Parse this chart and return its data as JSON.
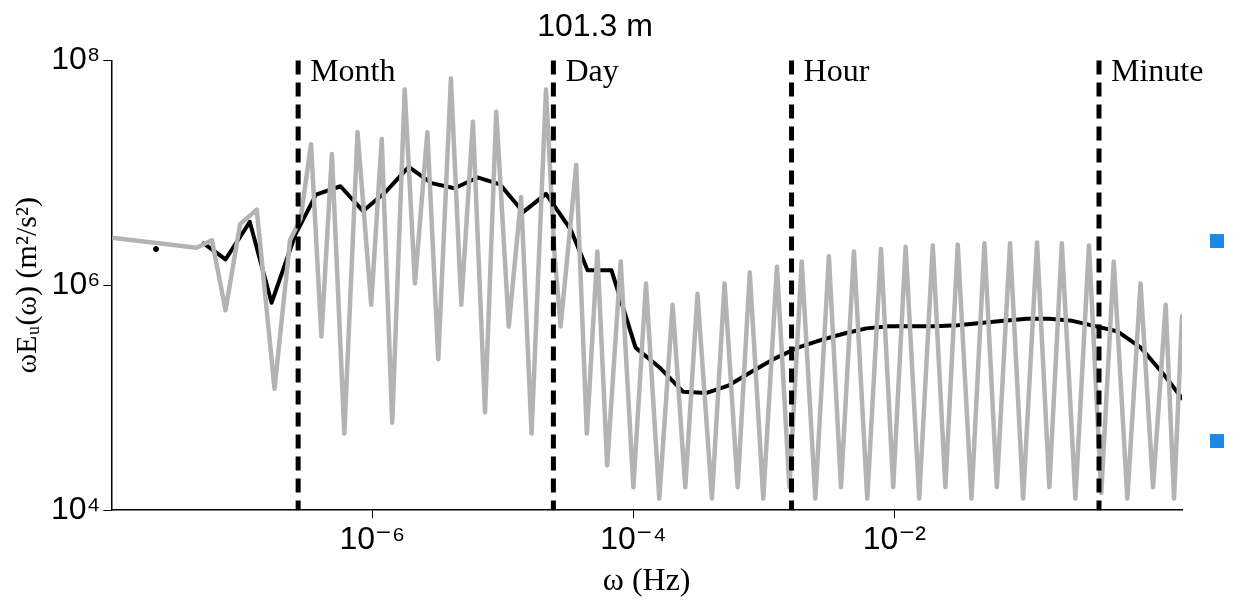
{
  "chart_data": {
    "type": "line",
    "title": "101.3 m",
    "xlabel": "ω (Hz)",
    "ylabel": "ωEᵤ(ω) (m²/s²)",
    "log": "xy",
    "grid": false,
    "legend": false,
    "marker": "none",
    "xlim": [
      1e-08,
      1.6
    ],
    "xticks": [
      {
        "value": 1e-06,
        "label": "10⁻⁶"
      },
      {
        "value": 0.0001,
        "label": "10⁻⁴"
      },
      {
        "value": 0.01,
        "label": "10⁻²"
      }
    ],
    "ylim": [
      10000,
      100000000
    ],
    "yticks": [
      {
        "value": 10000,
        "label": "10⁴"
      },
      {
        "value": 1000000,
        "label": "10⁶"
      },
      {
        "value": 100000000,
        "label": "10⁸"
      }
    ],
    "series": [
      {
        "color": "#b3b3b3",
        "x": [
          1.05e-08,
          4.5e-08,
          5.9e-08,
          7.5e-08,
          9.7e-08,
          1.3e-07,
          1.78e-07,
          2.34e-07,
          2.82e-07,
          3.39e-07,
          4.07e-07,
          4.9e-07,
          6.1e-07,
          7.7e-07,
          9.8e-07,
          1.18e-06,
          1.42e-06,
          1.77e-06,
          2.12e-06,
          2.64e-06,
          3.2e-06,
          4e-06,
          4.8e-06,
          5.9e-06,
          7.3e-06,
          8.9e-06,
          1.11e-05,
          1.38e-05,
          1.66e-05,
          2.14e-05,
          2.48e-05,
          2.77e-05,
          3.65e-05,
          4.4e-05,
          5.3e-05,
          6.3e-05,
          8e-05,
          0.0001,
          0.000125,
          0.000158,
          0.0002,
          0.00025,
          0.00031,
          0.0004,
          0.0005,
          0.00063,
          0.00078,
          0.00099,
          0.00126,
          0.00157,
          0.00195,
          0.00248,
          0.00315,
          0.0039,
          0.0049,
          0.0062,
          0.0079,
          0.0098,
          0.0122,
          0.0155,
          0.0197,
          0.0246,
          0.0306,
          0.039,
          0.049,
          0.061,
          0.077,
          0.097,
          0.124,
          0.154,
          0.192,
          0.244,
          0.31,
          0.385,
          0.48,
          0.61,
          0.77,
          0.96,
          1.2,
          1.39,
          1.6
        ],
        "values": [
          2640000,
          2160000,
          2520000,
          600000,
          3500000,
          4700000,
          120000,
          2520000,
          3900000,
          18000000,
          350000,
          14700000,
          48000,
          23000000,
          670000,
          20000000,
          60000,
          55000000,
          1040000,
          23000000,
          220000,
          69000000,
          670000,
          28500000,
          74000,
          35000000,
          430000,
          6100000,
          48000,
          55000000,
          2000000,
          430000,
          11800000,
          48000,
          2000000,
          25000,
          1630000,
          16000,
          1040000,
          12700,
          670000,
          16000,
          840000,
          12700,
          1040000,
          16000,
          1300000,
          12700,
          1460000,
          16000,
          1630000,
          12700,
          1810000,
          16000,
          2000000,
          12700,
          2100000,
          16000,
          2200000,
          12700,
          2260000,
          16000,
          2300000,
          12700,
          2360000,
          16000,
          2360000,
          12700,
          2400000,
          16000,
          2360000,
          12700,
          2260000,
          14200,
          1630000,
          12700,
          1040000,
          16000,
          670000,
          12700,
          530000
        ]
      },
      {
        "color": "#000000",
        "x": [
          5.1e-08,
          7.5e-08,
          1.15e-07,
          1.69e-07,
          2.57e-07,
          3.7e-07,
          5.7e-07,
          8.5e-07,
          1.27e-06,
          1.9e-06,
          2.84e-06,
          4.26e-06,
          6.4e-06,
          9.5e-06,
          1.43e-05,
          2.14e-05,
          3.3e-05,
          4.46e-05,
          6.8e-05,
          0.000104,
          0.000158,
          0.000241,
          0.00036,
          0.00054,
          0.00081,
          0.00121,
          0.00182,
          0.00272,
          0.00407,
          0.0061,
          0.0091,
          0.0136,
          0.0205,
          0.0306,
          0.0458,
          0.069,
          0.103,
          0.154,
          0.231,
          0.345,
          0.516,
          0.773,
          1.16,
          1.6
        ],
        "values": [
          2360000,
          1700000,
          3670000,
          700000,
          2820000,
          6400000,
          7600000,
          4570000,
          6800000,
          11300000,
          8100000,
          7300000,
          9100000,
          7900000,
          4480000,
          6500000,
          3150000,
          1360000,
          1360000,
          279000,
          187000,
          113000,
          110000,
          129000,
          171000,
          223000,
          279000,
          325000,
          371000,
          414000,
          433000,
          433000,
          433000,
          442000,
          463000,
          483000,
          505000,
          505000,
          483000,
          433000,
          388000,
          279000,
          161000,
          99000
        ]
      },
      {
        "type": "scatter",
        "color": "#000000",
        "marker": "circle",
        "x": [
          2.2e-08
        ],
        "values": [
          2100000
        ]
      }
    ],
    "ref_lines": [
      {
        "axis": "x",
        "value": 2.7e-07,
        "label": "Month",
        "color": "#000000",
        "line_style": "dashed"
      },
      {
        "axis": "x",
        "value": 2.44e-05,
        "label": "Day",
        "color": "#000000",
        "line_style": "dashed"
      },
      {
        "axis": "x",
        "value": 0.00163,
        "label": "Hour",
        "color": "#000000",
        "line_style": "dashed"
      },
      {
        "axis": "x",
        "value": 0.37,
        "label": "Minute",
        "color": "#000000",
        "line_style": "dashed"
      }
    ]
  }
}
